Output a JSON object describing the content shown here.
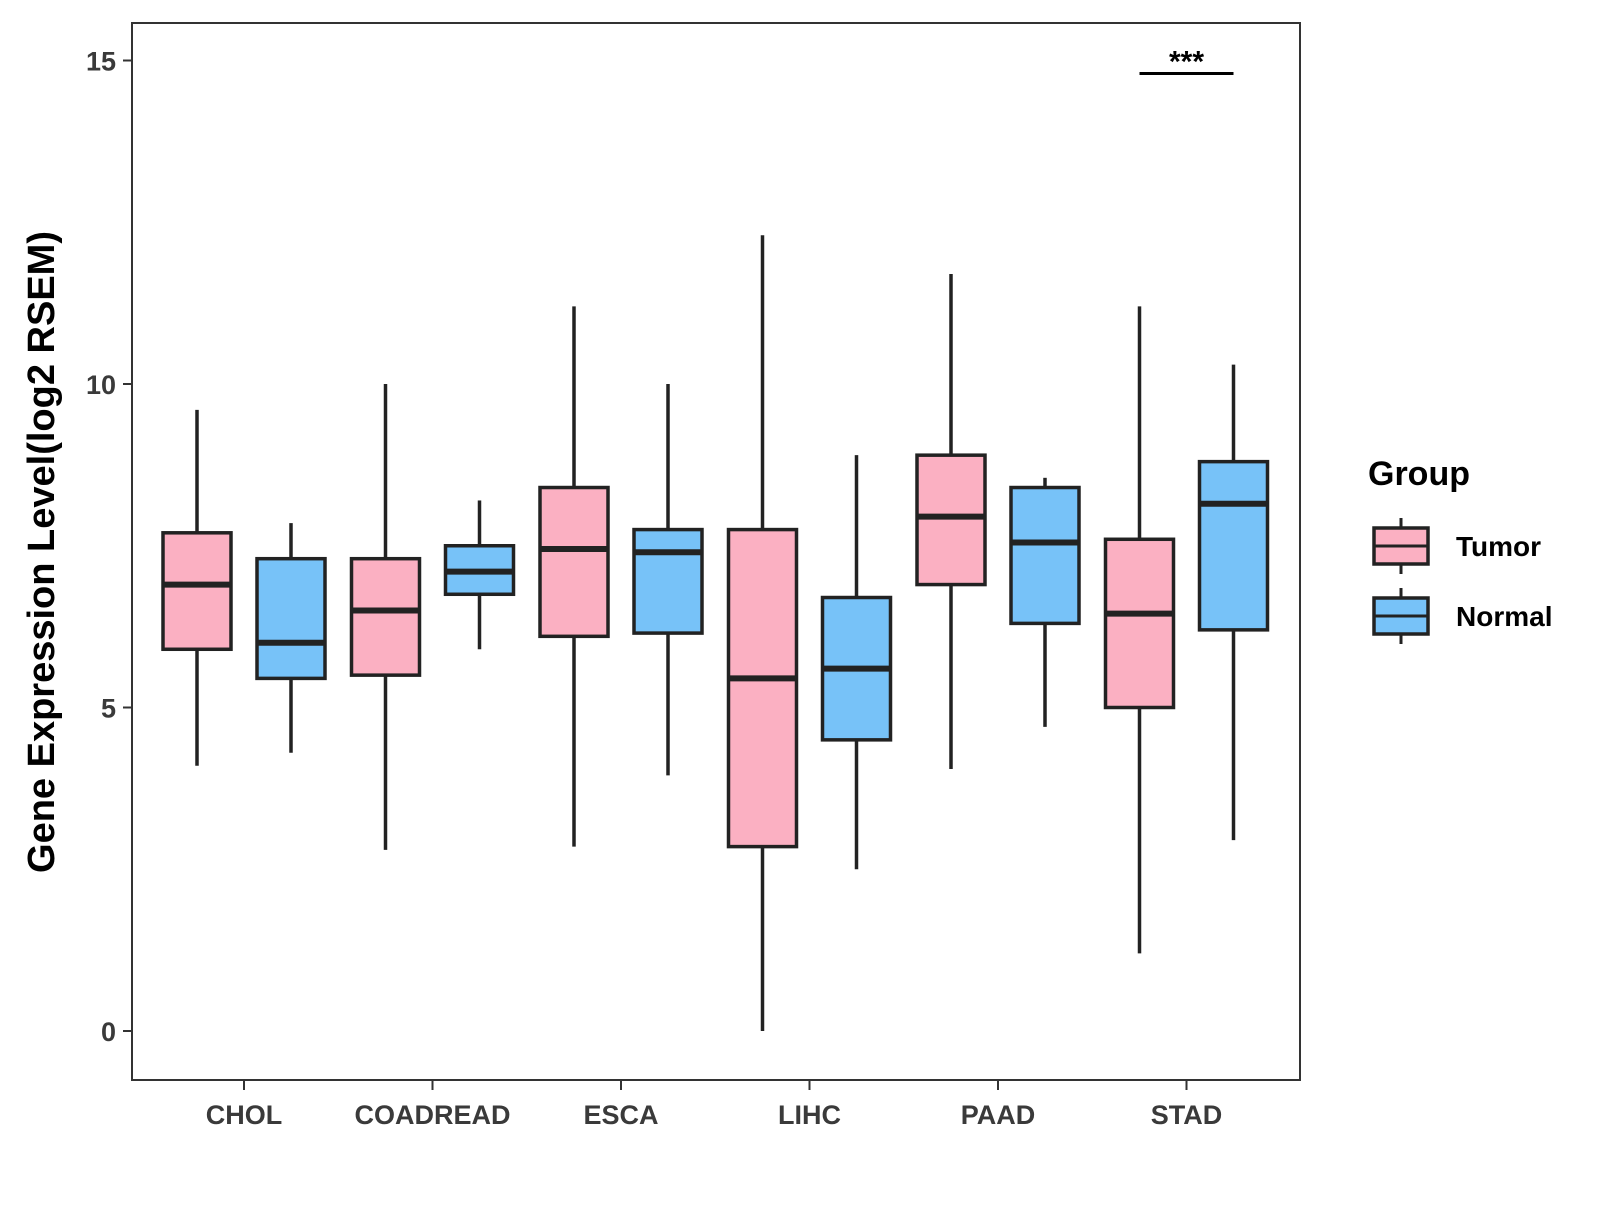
{
  "chart_data": {
    "type": "boxplot",
    "title": "",
    "xlabel": "",
    "ylabel": "Gene Expression Level(log2 RSEM)",
    "ylim": [
      -0.75,
      15.6
    ],
    "yticks": [
      0,
      5,
      10,
      15
    ],
    "categories": [
      "CHOL",
      "COADREAD",
      "ESCA",
      "LIHC",
      "PAAD",
      "STAD"
    ],
    "legend": {
      "title": "Group",
      "placement": "right",
      "entries": [
        {
          "name": "Tumor",
          "color": "#FBB0C2"
        },
        {
          "name": "Normal",
          "color": "#77C2F8"
        }
      ]
    },
    "series": [
      {
        "name": "Tumor",
        "color": "#FBB0C2",
        "boxes": [
          {
            "category": "CHOL",
            "min": 4.1,
            "q1": 5.9,
            "median": 6.9,
            "q3": 7.7,
            "max": 9.6
          },
          {
            "category": "COADREAD",
            "min": 2.8,
            "q1": 5.5,
            "median": 6.5,
            "q3": 7.3,
            "max": 10.0
          },
          {
            "category": "ESCA",
            "min": 2.85,
            "q1": 6.1,
            "median": 7.45,
            "q3": 8.4,
            "max": 11.2
          },
          {
            "category": "LIHC",
            "min": 0.0,
            "q1": 2.85,
            "median": 5.45,
            "q3": 7.75,
            "max": 12.3
          },
          {
            "category": "PAAD",
            "min": 4.05,
            "q1": 6.9,
            "median": 7.95,
            "q3": 8.9,
            "max": 11.7
          },
          {
            "category": "STAD",
            "min": 1.2,
            "q1": 5.0,
            "median": 6.45,
            "q3": 7.6,
            "max": 11.2
          }
        ]
      },
      {
        "name": "Normal",
        "color": "#77C2F8",
        "boxes": [
          {
            "category": "CHOL",
            "min": 4.3,
            "q1": 5.45,
            "median": 6.0,
            "q3": 7.3,
            "max": 7.85
          },
          {
            "category": "COADREAD",
            "min": 5.9,
            "q1": 6.75,
            "median": 7.1,
            "q3": 7.5,
            "max": 8.2
          },
          {
            "category": "ESCA",
            "min": 3.95,
            "q1": 6.15,
            "median": 7.4,
            "q3": 7.75,
            "max": 10.0
          },
          {
            "category": "LIHC",
            "min": 2.5,
            "q1": 4.5,
            "median": 5.6,
            "q3": 6.7,
            "max": 8.9
          },
          {
            "category": "PAAD",
            "min": 4.7,
            "q1": 6.3,
            "median": 7.55,
            "q3": 8.4,
            "max": 8.55
          },
          {
            "category": "STAD",
            "min": 2.95,
            "q1": 6.2,
            "median": 8.15,
            "q3": 8.8,
            "max": 10.3
          }
        ]
      }
    ],
    "annotations": [
      {
        "category": "STAD",
        "text": "***",
        "y": 14.8
      }
    ]
  }
}
